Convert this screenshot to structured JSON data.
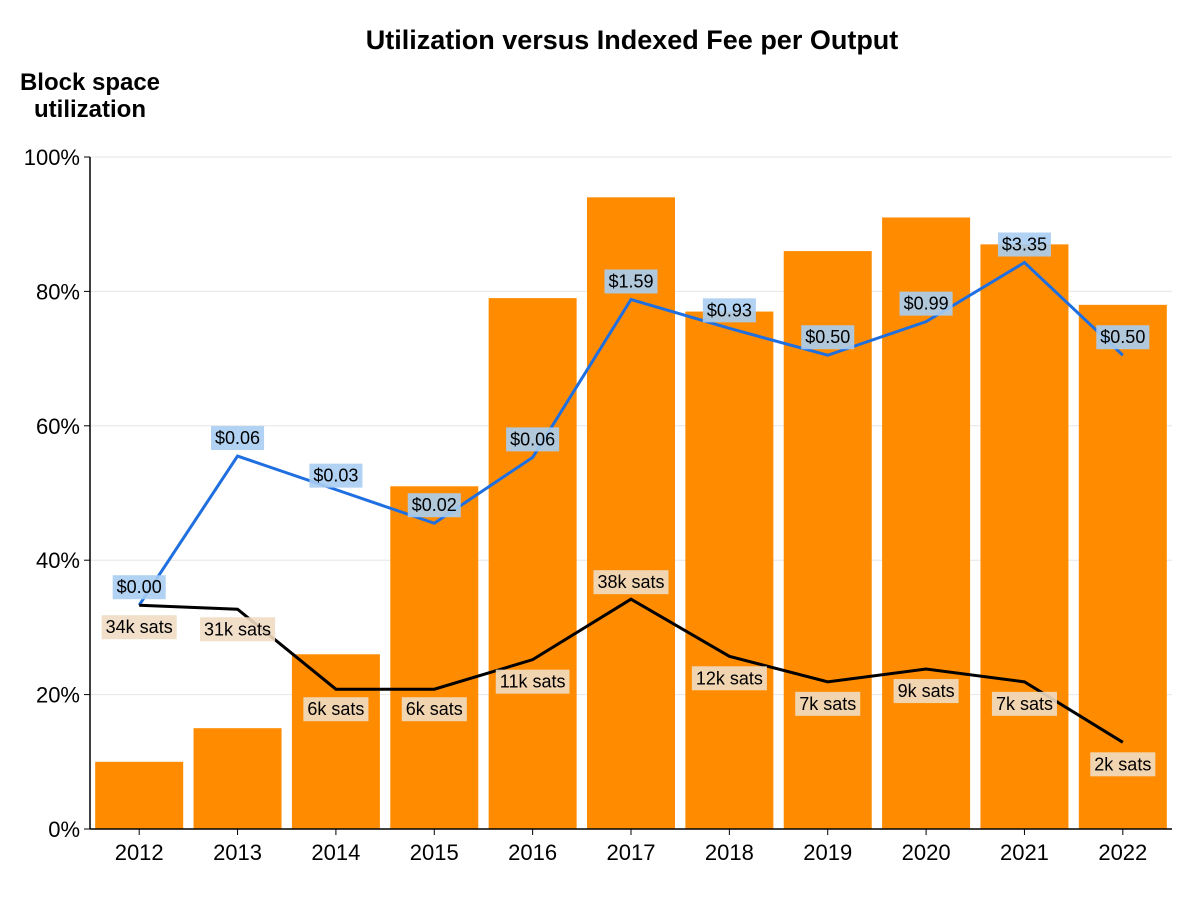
{
  "chart_data": {
    "type": "bar",
    "title": "Utilization versus Indexed Fee per Output",
    "ylabel": "Block space utilization",
    "ylabel_lines": [
      "Block space",
      "utilization"
    ],
    "xlabel": "",
    "ylim": [
      0,
      100
    ],
    "yticks": [
      0,
      20,
      40,
      60,
      80,
      100
    ],
    "ytick_labels": [
      "0%",
      "20%",
      "40%",
      "60%",
      "80%",
      "100%"
    ],
    "grid": true,
    "categories": [
      "2012",
      "2013",
      "2014",
      "2015",
      "2016",
      "2017",
      "2018",
      "2019",
      "2020",
      "2021",
      "2022"
    ],
    "series": [
      {
        "name": "Block space utilization",
        "type": "bar",
        "color": "#ff8c00",
        "values": [
          10,
          15,
          26,
          51,
          79,
          94,
          77,
          86,
          91,
          87,
          78
        ]
      },
      {
        "name": "Indexed fee per output (USD)",
        "type": "line",
        "color": "#1f6fe0",
        "label_bg": "#a9cdf2",
        "values": [
          33.3,
          55.5,
          50.5,
          45.5,
          55.3,
          78.8,
          74.5,
          70.5,
          75.5,
          84.3,
          70.5
        ],
        "labels": [
          "$0.00",
          "$0.06",
          "$0.03",
          "$0.02",
          "$0.06",
          "$1.59",
          "$0.93",
          "$0.50",
          "$0.99",
          "$3.35",
          "$0.50"
        ]
      },
      {
        "name": "Indexed fee per output (sats)",
        "type": "line",
        "color": "#000000",
        "label_bg": "#f0dcc3",
        "values": [
          33.3,
          32.7,
          20.8,
          20.8,
          25.2,
          34.2,
          25.7,
          21.9,
          23.8,
          21.9,
          12.9
        ],
        "labels": [
          "34k sats",
          "31k sats",
          "6k sats",
          "6k sats",
          "11k sats",
          "38k sats",
          "12k sats",
          "7k sats",
          "9k sats",
          "7k sats",
          "2k sats"
        ]
      }
    ]
  }
}
